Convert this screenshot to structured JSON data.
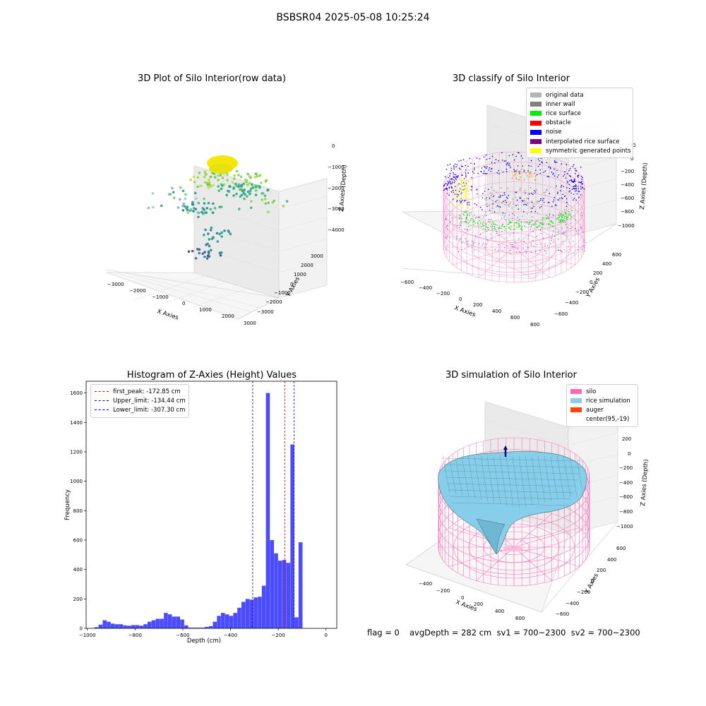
{
  "suptitle": "BSBSR04 2025-05-08 10:25:24",
  "panel1": {
    "title": "3D Plot of Silo Interior(row data)",
    "xlabel": "X Axies",
    "ylabel": "Y Axies",
    "zlabel": "Z Axies (Depth)",
    "xticks": [
      "−3000",
      "−2000",
      "−1000",
      "0",
      "1000",
      "2000",
      "3000"
    ],
    "yticks": [
      "3000",
      "2000",
      "1000",
      "0",
      "−1000",
      "−2000",
      "−3000"
    ],
    "zticks": [
      "0",
      "−1000",
      "−2000",
      "−3000",
      "−4000"
    ]
  },
  "panel2": {
    "title": "3D classify of Silo Interior",
    "xlabel": "X Axies",
    "ylabel": "Y Axies",
    "zlabel": "Z Axies (Depth)",
    "xticks": [
      "−600",
      "−400",
      "−200",
      "0",
      "200",
      "400",
      "600",
      "800"
    ],
    "yticks": [
      "600",
      "400",
      "200",
      "0",
      "−200",
      "−400",
      "−600"
    ],
    "zticks": [
      "200",
      "0",
      "−200",
      "−400",
      "−600",
      "−800",
      "−1000"
    ],
    "legend": [
      {
        "label": "original data",
        "color": "#b4b4b4"
      },
      {
        "label": "inner wall",
        "color": "#808080"
      },
      {
        "label": "rice surface",
        "color": "#00ee00"
      },
      {
        "label": "obstacle",
        "color": "#ff0000"
      },
      {
        "label": "noise",
        "color": "#0000ee"
      },
      {
        "label": "interpolated rice surface",
        "color": "#800080"
      },
      {
        "label": "symmetric generated points",
        "color": "#ffff00"
      }
    ]
  },
  "panel3": {
    "title": "3D simulation of Silo Interior",
    "xlabel": "X Axies",
    "ylabel": "Y Axies",
    "zlabel": "Z Axies (Depth)",
    "xticks": [
      "−400",
      "−200",
      "0",
      "200",
      "400",
      "600"
    ],
    "yticks": [
      "600",
      "400",
      "200",
      "0",
      "−200",
      "−400",
      "−600"
    ],
    "zticks": [
      "200",
      "0",
      "−200",
      "−400",
      "−600",
      "−800",
      "−1000"
    ],
    "legend": [
      {
        "label": "silo",
        "color": "#ff69b4"
      },
      {
        "label": "rice simulation",
        "color": "#87ceeb"
      },
      {
        "label": "auger",
        "color": "#ff4500"
      },
      {
        "label": "center(95,-19)",
        "color": ""
      }
    ]
  },
  "footer": {
    "flag": "flag = 0",
    "stats": "avgDepth = 282 cm  sv1 = 700~2300  sv2 = 700~2300"
  },
  "chart_data": [
    {
      "type": "bar",
      "title": "Histogram of Z-Axies (Height) Values",
      "xlabel": "Depth (cm)",
      "ylabel": "Frequency",
      "xlim": [
        -1005,
        45
      ],
      "ylim": [
        0,
        1680
      ],
      "xticks": [
        -1000,
        -800,
        -600,
        -400,
        -200,
        0
      ],
      "yticks": [
        0,
        200,
        400,
        600,
        800,
        1000,
        1200,
        1400,
        1600
      ],
      "bar_color": "#0000ff",
      "bin_start": -970,
      "bin_width": 17.1,
      "values": [
        8,
        25,
        55,
        45,
        32,
        28,
        28,
        20,
        18,
        22,
        22,
        18,
        28,
        45,
        55,
        65,
        65,
        105,
        95,
        80,
        80,
        60,
        20,
        5,
        5,
        5,
        5,
        10,
        15,
        45,
        85,
        105,
        95,
        85,
        105,
        140,
        180,
        200,
        195,
        210,
        215,
        290,
        1600,
        600,
        510,
        460,
        465,
        445,
        1250,
        75,
        585
      ],
      "vlines": [
        {
          "label": "first_peak: -172.85 cm",
          "x": -172.85,
          "color": "#ff0000"
        },
        {
          "label": "Upper_limit: -134.44 cm",
          "x": -134.44,
          "color": "#0000cc"
        },
        {
          "label": "Lower_limit: -307.30 cm",
          "x": -307.3,
          "color": "#0000cc"
        }
      ],
      "legend_position": "upper-left"
    }
  ]
}
